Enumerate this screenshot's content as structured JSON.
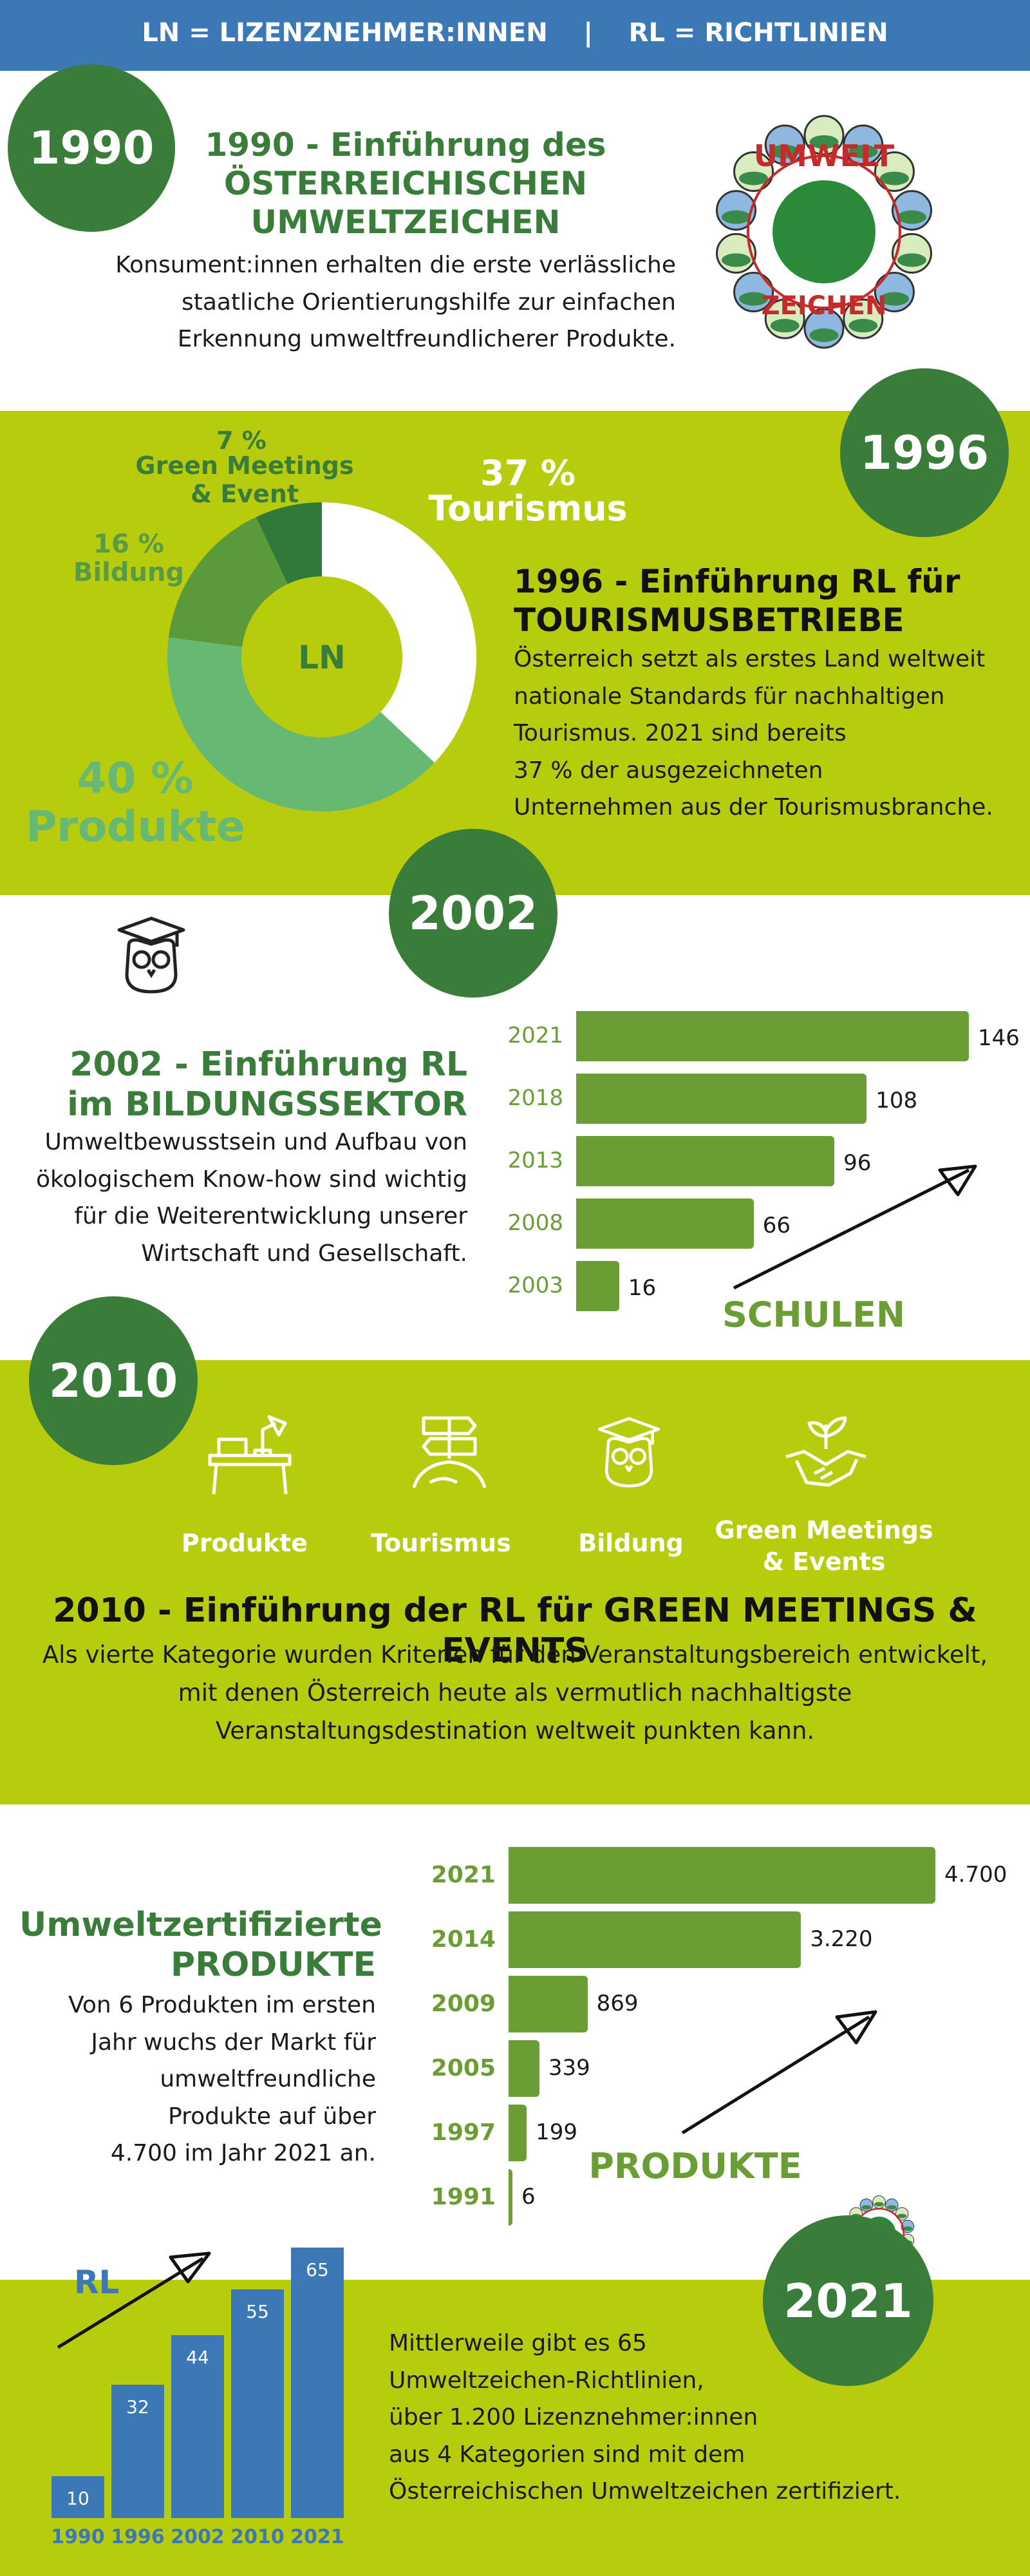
{
  "header": {
    "text": "LN = LIZENZNEHMER:INNEN    |    RL = RICHTLINIEN",
    "color": "#3b78b5"
  },
  "s1990": {
    "year": "1990",
    "title": "1990 - Einführung des\nÖSTERREICHISCHEN\nUMWELTZEICHEN",
    "body": "Konsument:innen erhalten die erste verlässliche\nstaatliche Orientierungshilfe zur einfachen\nErkennung umweltfreundlicherer Produkte.",
    "logo_text": "UMWELTZEICHEN"
  },
  "s1996": {
    "year": "1996",
    "title": "1996 - Einführung RL für\nTOURISMUSBETRIEBE",
    "body": "Österreich setzt als erstes Land weltweit\nnationale Standards für nachhaltigen\nTourismus. 2021 sind bereits\n37 % der ausgezeichneten\nUnternehmen aus der Tourismusbranche.",
    "donut_center": "LN",
    "labels": {
      "tourismus_pct": "37 %",
      "tourismus": "Tourismus",
      "produkte_pct": "40 %",
      "produkte": "Produkte",
      "bildung_pct": "16 %",
      "bildung": "Bildung",
      "gm_pct": "7 %",
      "gm": "Green Meetings\n& Event"
    }
  },
  "s2002": {
    "year": "2002",
    "title": "2002 - Einführung RL\nim BILDUNGSSEKTOR",
    "body": "Umweltbewusstsein und Aufbau von\nökologischem Know-how sind wichtig\nfür die Weiterentwicklung unserer\nWirtschaft und Gesellschaft.",
    "chart_label": "SCHULEN",
    "icon": "owl-graduate-icon"
  },
  "s2010": {
    "year": "2010",
    "categories": [
      "Produkte",
      "Tourismus",
      "Bildung",
      "Green Meetings\n& Events"
    ],
    "title": "2010 - Einführung der RL für GREEN MEETINGS & EVENTS",
    "body": "Als vierte Kategorie wurden Kriterien für den Veranstaltungsbereich entwickelt,\nmit denen Österreich heute als vermutlich nachhaltigste\nVeranstaltungsdestination weltweit punkten kann."
  },
  "sProdukte": {
    "title": "Umweltzertifizierte\nPRODUKTE",
    "body": "Von 6 Produkten im ersten\nJahr wuchs der Markt für\numweltfreundliche\nProdukte auf über\n4.700 im Jahr 2021 an.",
    "chart_label": "PRODUKTE"
  },
  "s2021": {
    "year": "2021",
    "rl_label": "RL",
    "body": "Mittlerweile gibt es 65\nUmweltzeichen-Richtlinien,\nüber 1.200 Lizenznehmer:innen\naus 4 Kategorien sind mit dem\nÖsterreichischen Umweltzeichen zertifiziert."
  },
  "colors": {
    "lime": "#b8cc0e",
    "dark_green": "#3a7d3a",
    "bar_green": "#6a9e35",
    "blue": "#3b78b5"
  },
  "chart_data": [
    {
      "type": "pie",
      "center_label": "LN",
      "categories": [
        "Tourismus",
        "Produkte",
        "Bildung",
        "Green Meetings & Event"
      ],
      "values": [
        37,
        40,
        16,
        7
      ],
      "unit": "%"
    },
    {
      "type": "bar",
      "orientation": "horizontal",
      "label": "SCHULEN",
      "categories": [
        "2021",
        "2018",
        "2013",
        "2008",
        "2003"
      ],
      "values": [
        146,
        108,
        96,
        66,
        16
      ],
      "value_labels": [
        "146",
        "108",
        "96",
        "66",
        "16"
      ]
    },
    {
      "type": "bar",
      "orientation": "horizontal",
      "label": "PRODUKTE",
      "categories": [
        "2021",
        "2014",
        "2009",
        "2005",
        "1997",
        "1991"
      ],
      "values": [
        4700,
        3220,
        869,
        339,
        199,
        6
      ],
      "value_labels": [
        "4.700",
        "3.220",
        "869",
        "339",
        "199",
        "6"
      ]
    },
    {
      "type": "bar",
      "orientation": "vertical",
      "label": "RL",
      "categories": [
        "1990",
        "1996",
        "2002",
        "2010",
        "2021"
      ],
      "values": [
        10,
        32,
        44,
        55,
        65
      ],
      "value_labels": [
        "10",
        "32",
        "44",
        "55",
        "65"
      ]
    }
  ]
}
